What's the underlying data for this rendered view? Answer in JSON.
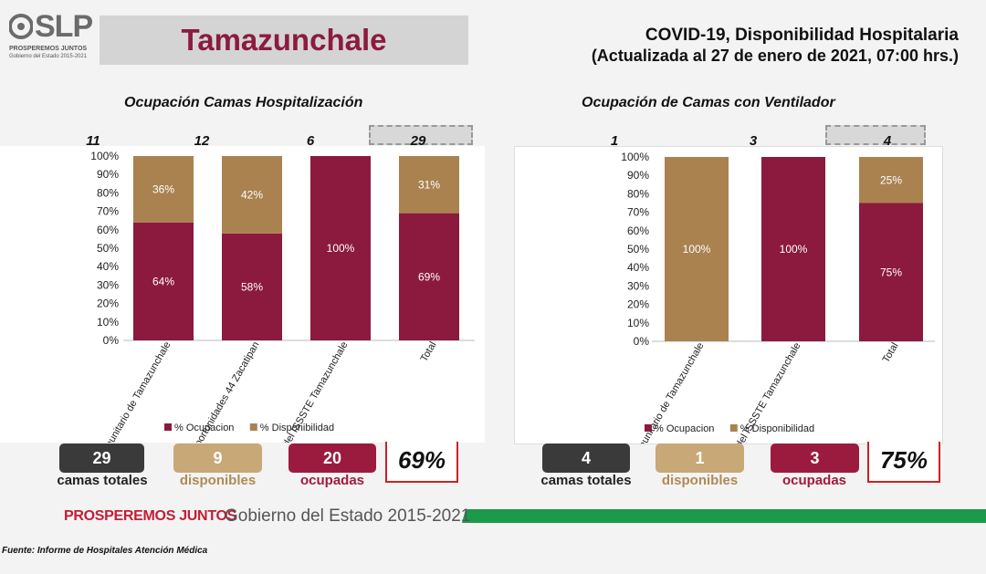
{
  "header": {
    "logo_text": "SLP",
    "logo_sub1": "PROSPEREMOS JUNTOS",
    "logo_sub2": "Gobierno del Estado 2015-2021",
    "municipality": "Tamazunchale",
    "title_line1": "COVID-19, Disponibilidad Hospitalaria",
    "title_line2": "(Actualizada al 27 de enero de 2021, 07:00 hrs.)"
  },
  "colors": {
    "ocupacion": "#8b1a3e",
    "disponibilidad": "#a98250",
    "dark_box": "#3a3a3a",
    "red_border": "#d02020"
  },
  "chart_data": [
    {
      "type": "bar",
      "stacked": true,
      "title": "Ocupación Camas Hospitalización",
      "categories": [
        "Hospital Comunitario de Tamazunchale",
        "Hospital Rural de Oportunidades 44 Zacatipan",
        "Hospital General del ISSSTE Tamazunchale",
        "Total"
      ],
      "counts": [
        "11",
        "12",
        "6",
        "29"
      ],
      "series": [
        {
          "name": "% Ocupacion",
          "values": [
            64,
            58,
            100,
            69
          ]
        },
        {
          "name": "% Disponibilidad",
          "values": [
            36,
            42,
            0,
            31
          ]
        }
      ],
      "ylim": [
        0,
        100
      ],
      "yticks": [
        "0%",
        "10%",
        "20%",
        "30%",
        "40%",
        "50%",
        "60%",
        "70%",
        "80%",
        "90%",
        "100%"
      ],
      "legend_position": "bottom"
    },
    {
      "type": "bar",
      "stacked": true,
      "title": "Ocupación de Camas con Ventilador",
      "categories": [
        "Hospital Comunitario de Tamazunchale",
        "Hospital General del ISSSTE Tamazunchale",
        "Total"
      ],
      "counts": [
        "1",
        "3",
        "4"
      ],
      "series": [
        {
          "name": "% Ocupacion",
          "values": [
            0,
            100,
            75
          ]
        },
        {
          "name": "% Disponibilidad",
          "values": [
            100,
            0,
            25
          ]
        }
      ],
      "ylim": [
        0,
        100
      ],
      "yticks": [
        "0%",
        "10%",
        "20%",
        "30%",
        "40%",
        "50%",
        "60%",
        "70%",
        "80%",
        "90%",
        "100%"
      ],
      "legend_position": "bottom"
    }
  ],
  "summary": {
    "left": {
      "totales_value": "29",
      "totales_label": "camas totales",
      "disp_value": "9",
      "disp_label": "disponibles",
      "ocup_value": "20",
      "ocup_label": "ocupadas",
      "percent": "69%"
    },
    "right": {
      "totales_value": "4",
      "totales_label": "camas totales",
      "disp_value": "1",
      "disp_label": "disponibles",
      "ocup_value": "3",
      "ocup_label": "ocupadas",
      "percent": "75%"
    }
  },
  "footer": {
    "slogan": "PROSPEREMOS JUNTOS",
    "government": "Gobierno del Estado 2015-2021",
    "source": "Fuente: Informe de Hospitales Atención Médica"
  }
}
